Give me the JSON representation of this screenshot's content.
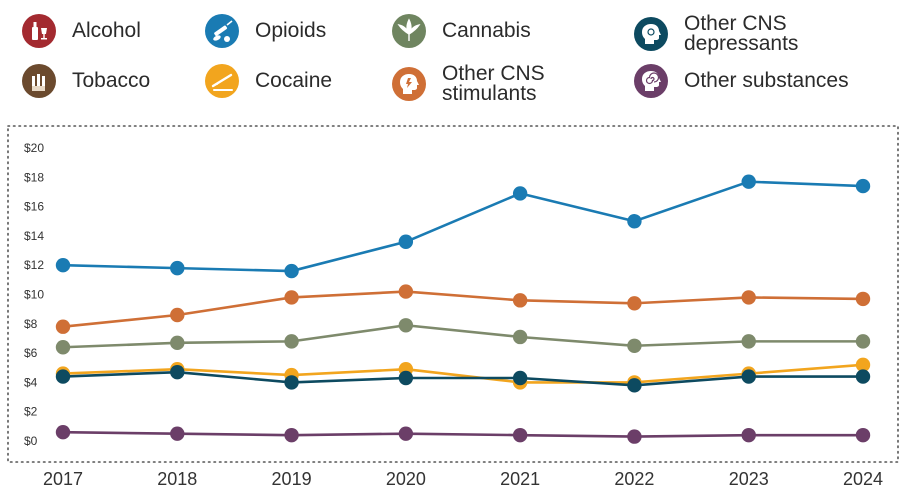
{
  "legend": [
    {
      "label": "Alcohol",
      "color": "#a32a30",
      "icon": "alcohol-bottle-glass-icon"
    },
    {
      "label": "Opioids",
      "color": "#1a7bb3",
      "icon": "syringe-pills-icon"
    },
    {
      "label": "Cannabis",
      "color": "#6f8560",
      "icon": "cannabis-leaf-icon"
    },
    {
      "label": "Other CNS\ndepressants",
      "color": "#0d4a60",
      "icon": "head-depressant-icon"
    },
    {
      "label": "Tobacco",
      "color": "#6b4a2e",
      "icon": "cigarettes-icon"
    },
    {
      "label": "Cocaine",
      "color": "#f2a51e",
      "icon": "cocaine-lines-icon"
    },
    {
      "label": "Other CNS\nstimulants",
      "color": "#cf6f36",
      "icon": "head-stimulant-icon"
    },
    {
      "label": "Other substances",
      "color": "#6b3e68",
      "icon": "head-spiral-icon"
    }
  ],
  "chart_data": {
    "type": "line",
    "x": [
      "2017",
      "2018",
      "2019",
      "2020",
      "2021",
      "2022",
      "2023",
      "2024"
    ],
    "y_ticks": [
      "$0",
      "$2",
      "$4",
      "$6",
      "$8",
      "$10",
      "$12",
      "$14",
      "$16",
      "$18",
      "$20"
    ],
    "ylim": [
      0,
      20
    ],
    "grid": false,
    "series": [
      {
        "name": "Opioids",
        "color": "#1a7bb3",
        "values": [
          12.0,
          11.8,
          11.6,
          13.6,
          16.9,
          15.0,
          17.7,
          17.4
        ]
      },
      {
        "name": "Other CNS stimulants",
        "color": "#cf6f36",
        "values": [
          7.8,
          8.6,
          9.8,
          10.2,
          9.6,
          9.4,
          9.8,
          9.7
        ]
      },
      {
        "name": "Cannabis",
        "color": "#7e8a6c",
        "values": [
          6.4,
          6.7,
          6.8,
          7.9,
          7.1,
          6.5,
          6.8,
          6.8
        ]
      },
      {
        "name": "Cocaine",
        "color": "#f2a51e",
        "values": [
          4.6,
          4.9,
          4.5,
          4.9,
          4.0,
          4.0,
          4.6,
          5.2
        ]
      },
      {
        "name": "Other CNS depressants",
        "color": "#0d4a60",
        "values": [
          4.4,
          4.7,
          4.0,
          4.3,
          4.3,
          3.8,
          4.4,
          4.4
        ]
      },
      {
        "name": "Other substances",
        "color": "#6b3e68",
        "values": [
          0.6,
          0.5,
          0.4,
          0.5,
          0.4,
          0.3,
          0.4,
          0.4
        ]
      }
    ]
  }
}
